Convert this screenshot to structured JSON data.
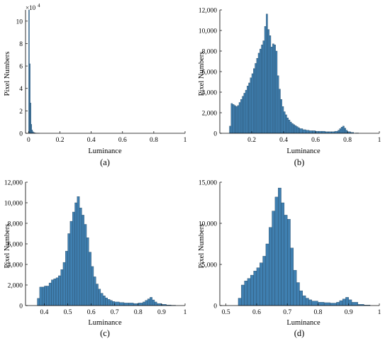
{
  "colors": {
    "bar_fill": "#3f7fb0",
    "bar_edge": "#24425a",
    "axis": "#000000"
  },
  "chart_data": [
    {
      "panel": "(a)",
      "type": "bar",
      "xlabel": "Luminance",
      "ylabel": "Pixel Numbers",
      "xlim": [
        -0.02,
        1
      ],
      "ylim": [
        0,
        110000
      ],
      "x_ticks": [
        0,
        0.2,
        0.4,
        0.6,
        0.8,
        1
      ],
      "x_tick_labels": [
        "0",
        "0.2",
        "0.4",
        "0.6",
        "0.8",
        "1"
      ],
      "y_ticks": [
        0,
        20000,
        40000,
        60000,
        80000,
        100000
      ],
      "y_tick_labels": [
        "0",
        "2",
        "4",
        "6",
        "8",
        "10"
      ],
      "y_exponent_base": "×10",
      "y_exponent_power": "4",
      "x": [
        0.0,
        0.005,
        0.01,
        0.015,
        0.02,
        0.025,
        0.03,
        0.035,
        0.04,
        0.045,
        0.05,
        0.06
      ],
      "values": [
        110000,
        62000,
        27000,
        8000,
        3000,
        1500,
        800,
        500,
        300,
        200,
        100,
        50
      ]
    },
    {
      "panel": "(b)",
      "type": "bar",
      "xlabel": "Luminance",
      "ylabel": "Pixel Numbers",
      "xlim": [
        0,
        1
      ],
      "ylim": [
        0,
        12000
      ],
      "x_ticks": [
        0.2,
        0.4,
        0.6,
        0.8,
        1
      ],
      "x_tick_labels": [
        "0.2",
        "0.4",
        "0.6",
        "0.8",
        "1"
      ],
      "y_ticks": [
        0,
        2000,
        4000,
        6000,
        8000,
        10000,
        12000
      ],
      "y_tick_labels": [
        "0",
        "2,000",
        "4,000",
        "6,000",
        "8,000",
        "10,000",
        "12,000"
      ],
      "x": [
        0.06,
        0.07,
        0.08,
        0.09,
        0.1,
        0.11,
        0.12,
        0.13,
        0.14,
        0.15,
        0.16,
        0.17,
        0.18,
        0.19,
        0.2,
        0.21,
        0.22,
        0.23,
        0.24,
        0.25,
        0.26,
        0.27,
        0.28,
        0.29,
        0.3,
        0.31,
        0.32,
        0.33,
        0.34,
        0.35,
        0.36,
        0.37,
        0.38,
        0.39,
        0.4,
        0.41,
        0.42,
        0.43,
        0.44,
        0.45,
        0.46,
        0.47,
        0.48,
        0.49,
        0.5,
        0.52,
        0.54,
        0.56,
        0.58,
        0.6,
        0.62,
        0.64,
        0.66,
        0.68,
        0.7,
        0.72,
        0.74,
        0.75,
        0.76,
        0.77,
        0.78,
        0.79,
        0.8,
        0.82,
        0.85
      ],
      "values": [
        700,
        2900,
        2800,
        2700,
        2600,
        2700,
        3000,
        3300,
        3600,
        3900,
        4200,
        4600,
        4900,
        5400,
        5800,
        6300,
        6800,
        7300,
        7800,
        8200,
        8600,
        9000,
        10400,
        11600,
        10100,
        9500,
        8400,
        8700,
        8600,
        8000,
        5600,
        4300,
        3300,
        2600,
        2100,
        1800,
        1500,
        1300,
        1100,
        950,
        850,
        750,
        650,
        550,
        450,
        350,
        300,
        250,
        250,
        200,
        200,
        200,
        150,
        150,
        150,
        200,
        300,
        450,
        600,
        700,
        500,
        300,
        150,
        80,
        30
      ]
    },
    {
      "panel": "(c)",
      "type": "bar",
      "xlabel": "Luminance",
      "ylabel": "Pixel Numbers",
      "xlim": [
        0.32,
        1
      ],
      "ylim": [
        0,
        12000
      ],
      "x_ticks": [
        0.4,
        0.5,
        0.6,
        0.7,
        0.8,
        0.9,
        1
      ],
      "x_tick_labels": [
        "0.4",
        "0.5",
        "0.6",
        "0.7",
        "0.8",
        "0.9",
        "1"
      ],
      "y_ticks": [
        0,
        2000,
        4000,
        6000,
        8000,
        10000,
        12000
      ],
      "y_tick_labels": [
        "0",
        "2,000",
        "4,000",
        "6,000",
        "8,000",
        "10,000",
        "12,000"
      ],
      "x": [
        0.37,
        0.38,
        0.39,
        0.4,
        0.41,
        0.42,
        0.43,
        0.44,
        0.45,
        0.46,
        0.47,
        0.48,
        0.49,
        0.5,
        0.51,
        0.52,
        0.53,
        0.54,
        0.55,
        0.56,
        0.57,
        0.58,
        0.59,
        0.6,
        0.61,
        0.62,
        0.63,
        0.64,
        0.65,
        0.66,
        0.67,
        0.68,
        0.69,
        0.7,
        0.72,
        0.74,
        0.76,
        0.78,
        0.8,
        0.82,
        0.83,
        0.84,
        0.85,
        0.86,
        0.87,
        0.88,
        0.9,
        0.92,
        0.94
      ],
      "values": [
        700,
        1800,
        1800,
        1900,
        1900,
        2200,
        2500,
        2600,
        2700,
        2900,
        3500,
        4200,
        5300,
        7000,
        8200,
        9100,
        10000,
        10600,
        9500,
        8800,
        7900,
        6600,
        5200,
        3800,
        2800,
        2100,
        1600,
        1200,
        950,
        750,
        600,
        500,
        400,
        350,
        300,
        250,
        250,
        200,
        250,
        350,
        500,
        650,
        800,
        550,
        350,
        200,
        120,
        60,
        30
      ]
    },
    {
      "panel": "(d)",
      "type": "bar",
      "xlabel": "Luminance",
      "ylabel": "Pixel Numbers",
      "xlim": [
        0.48,
        1
      ],
      "ylim": [
        0,
        15000
      ],
      "x_ticks": [
        0.5,
        0.6,
        0.7,
        0.8,
        0.9,
        1
      ],
      "x_tick_labels": [
        "0.5",
        "0.6",
        "0.7",
        "0.8",
        "0.9",
        "1"
      ],
      "y_ticks": [
        0,
        5000,
        10000,
        15000
      ],
      "y_tick_labels": [
        "0",
        "5,000",
        "10,000",
        "15,000"
      ],
      "x": [
        0.54,
        0.55,
        0.56,
        0.57,
        0.58,
        0.59,
        0.6,
        0.61,
        0.62,
        0.63,
        0.64,
        0.65,
        0.66,
        0.67,
        0.68,
        0.69,
        0.7,
        0.71,
        0.72,
        0.73,
        0.74,
        0.75,
        0.76,
        0.77,
        0.78,
        0.8,
        0.82,
        0.84,
        0.86,
        0.87,
        0.88,
        0.89,
        0.9,
        0.91,
        0.93,
        0.95
      ],
      "values": [
        900,
        2500,
        3000,
        3300,
        3700,
        4200,
        4600,
        5200,
        6000,
        7500,
        9500,
        11500,
        13200,
        14300,
        12500,
        11000,
        10500,
        7000,
        4300,
        2800,
        1800,
        1200,
        900,
        700,
        550,
        400,
        350,
        300,
        400,
        600,
        800,
        1000,
        700,
        400,
        150,
        60
      ]
    }
  ],
  "panels": [
    {
      "caption": "(a)",
      "xlabel": "Luminance",
      "ylabel": "Pixel Numbers"
    },
    {
      "caption": "(b)",
      "xlabel": "Luminance",
      "ylabel": "Pixel Numbers"
    },
    {
      "caption": "(c)",
      "xlabel": "Luminance",
      "ylabel": "Pixel Numbers"
    },
    {
      "caption": "(d)",
      "xlabel": "Luminance",
      "ylabel": "Pixel Numbers"
    }
  ]
}
